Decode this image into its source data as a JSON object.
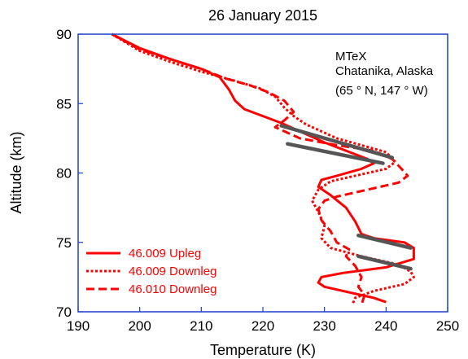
{
  "chart_data": {
    "type": "line",
    "title": "26 January 2015",
    "xlabel": "Temperature (K)",
    "ylabel": "Altitude (km)",
    "xlim": [
      190,
      250
    ],
    "ylim": [
      70,
      90
    ],
    "xticks": [
      190,
      200,
      210,
      220,
      230,
      240,
      250
    ],
    "yticks": [
      70,
      75,
      80,
      85,
      90
    ],
    "grid": false,
    "legend_position": "bottom-left",
    "annotations": [
      "MTeX",
      "Chatanika, Alaska",
      "(65 ° N, 147 ° W)"
    ],
    "colors": {
      "series": "#ff0000",
      "fit": "#555555",
      "frame": "#1a3fcc",
      "legend_text": "#ff0000"
    },
    "series": [
      {
        "name": "46.009 Upleg",
        "style": "solid",
        "color": "#ff0000",
        "points": [
          [
            195.5,
            90.0
          ],
          [
            200,
            89.0
          ],
          [
            205,
            88.2
          ],
          [
            210,
            87.5
          ],
          [
            213,
            86.9
          ],
          [
            214.5,
            86.0
          ],
          [
            215.5,
            85.2
          ],
          [
            217,
            84.6
          ],
          [
            220,
            84.1
          ],
          [
            223,
            83.6
          ],
          [
            230,
            82.2
          ],
          [
            237,
            81.0
          ],
          [
            238,
            80.7
          ],
          [
            236,
            80.3
          ],
          [
            232,
            79.8
          ],
          [
            229.5,
            79.5
          ],
          [
            229,
            79.0
          ],
          [
            231,
            78.4
          ],
          [
            233.5,
            77.5
          ],
          [
            235,
            76.5
          ],
          [
            236,
            75.6
          ],
          [
            238,
            75.3
          ],
          [
            243,
            75.0
          ],
          [
            244.5,
            74.6
          ],
          [
            244.5,
            73.8
          ],
          [
            240,
            73.2
          ],
          [
            233,
            72.8
          ],
          [
            229.5,
            72.5
          ],
          [
            229,
            72.1
          ],
          [
            230,
            71.8
          ],
          [
            234,
            71.4
          ],
          [
            238,
            71.0
          ],
          [
            240,
            70.7
          ]
        ]
      },
      {
        "name": "46.009 Downleg",
        "style": "dotted",
        "color": "#ff0000",
        "points": [
          [
            195.5,
            90.0
          ],
          [
            200,
            88.8
          ],
          [
            205,
            88.0
          ],
          [
            210,
            87.3
          ],
          [
            215,
            86.7
          ],
          [
            219.5,
            86.1
          ],
          [
            222,
            85.5
          ],
          [
            223.5,
            84.7
          ],
          [
            225,
            84.1
          ],
          [
            227,
            83.5
          ],
          [
            232,
            82.5
          ],
          [
            236,
            82.0
          ],
          [
            240,
            81.5
          ],
          [
            241.5,
            80.8
          ],
          [
            240,
            80.3
          ],
          [
            236,
            79.9
          ],
          [
            231,
            79.4
          ],
          [
            229,
            78.8
          ],
          [
            228,
            78.0
          ],
          [
            229,
            77.2
          ],
          [
            230,
            76.2
          ],
          [
            229.5,
            75.3
          ],
          [
            231,
            74.6
          ],
          [
            236,
            74.0
          ],
          [
            242,
            73.4
          ],
          [
            244,
            72.9
          ],
          [
            244.5,
            72.5
          ],
          [
            243,
            72.0
          ],
          [
            238,
            71.5
          ],
          [
            235,
            71.0
          ],
          [
            234.5,
            70.5
          ]
        ]
      },
      {
        "name": "46.010 Downleg",
        "style": "dashed",
        "color": "#ff0000",
        "points": [
          [
            195.5,
            90.0
          ],
          [
            200,
            88.9
          ],
          [
            205,
            88.2
          ],
          [
            210,
            87.5
          ],
          [
            214,
            86.8
          ],
          [
            218,
            86.3
          ],
          [
            221,
            85.8
          ],
          [
            223.5,
            85.2
          ],
          [
            225,
            84.4
          ],
          [
            223.5,
            83.8
          ],
          [
            222,
            83.3
          ],
          [
            226,
            82.5
          ],
          [
            232,
            82.0
          ],
          [
            238,
            81.6
          ],
          [
            241,
            81.0
          ],
          [
            242.5,
            80.3
          ],
          [
            243.5,
            79.8
          ],
          [
            242,
            79.3
          ],
          [
            237,
            78.8
          ],
          [
            232,
            78.3
          ],
          [
            230,
            78.0
          ],
          [
            229,
            77.4
          ],
          [
            229.5,
            76.6
          ],
          [
            231,
            75.8
          ],
          [
            232,
            75.0
          ],
          [
            234,
            74.5
          ],
          [
            233.5,
            74.0
          ],
          [
            235,
            73.3
          ],
          [
            236,
            72.5
          ],
          [
            235.5,
            71.8
          ],
          [
            236.5,
            71.2
          ],
          [
            236,
            70.5
          ]
        ]
      }
    ],
    "fits": [
      {
        "style": "solid-gray",
        "color": "#555555",
        "points": [
          [
            223,
            83.4
          ],
          [
            241,
            81.1
          ]
        ]
      },
      {
        "style": "solid-gray",
        "color": "#555555",
        "points": [
          [
            224,
            82.1
          ],
          [
            239.5,
            80.7
          ]
        ]
      },
      {
        "style": "solid-gray",
        "color": "#555555",
        "points": [
          [
            235.5,
            75.5
          ],
          [
            244,
            74.6
          ]
        ]
      },
      {
        "style": "solid-gray",
        "color": "#555555",
        "points": [
          [
            235.5,
            74.0
          ],
          [
            244,
            73.1
          ]
        ]
      }
    ]
  }
}
